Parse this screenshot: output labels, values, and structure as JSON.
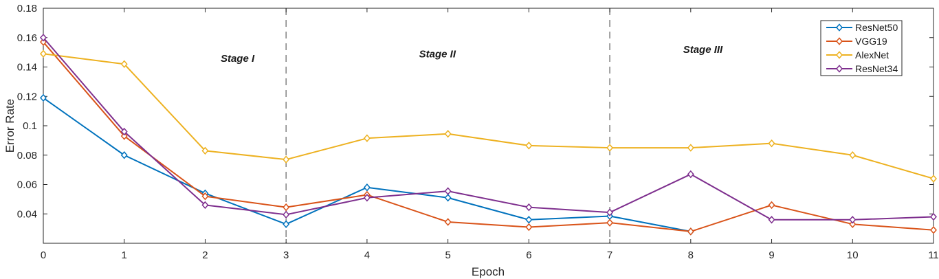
{
  "chart_data": {
    "type": "line",
    "xlabel": "Epoch",
    "ylabel": "Error Rate",
    "xlim": [
      0,
      11
    ],
    "ylim": [
      0.02,
      0.18
    ],
    "xticks": [
      0,
      1,
      2,
      3,
      4,
      5,
      6,
      7,
      8,
      9,
      10,
      11
    ],
    "xtick_labels": [
      "0",
      "1",
      "2",
      "3",
      "4",
      "5",
      "6",
      "7",
      "8",
      "9",
      "10",
      "11"
    ],
    "yticks": [
      0.04,
      0.06,
      0.08,
      0.1,
      0.12,
      0.14,
      0.16,
      0.18
    ],
    "ytick_labels": [
      "0.04",
      "0.06",
      "0.08",
      "0.1",
      "0.12",
      "0.14",
      "0.16",
      "0.18"
    ],
    "grid": false,
    "axis_color": "#262626",
    "x": [
      0,
      1,
      2,
      3,
      4,
      5,
      6,
      7,
      8,
      9,
      10,
      11
    ],
    "series": [
      {
        "name": "ResNet50",
        "color": "#0072BD",
        "marker": "diamond",
        "values": [
          0.119,
          0.08,
          0.054,
          0.033,
          0.058,
          0.051,
          0.036,
          0.0385,
          0.028,
          null,
          null,
          null
        ]
      },
      {
        "name": "VGG19",
        "color": "#D95319",
        "marker": "diamond",
        "values": [
          0.157,
          0.093,
          0.052,
          0.0445,
          0.053,
          0.0345,
          0.031,
          0.034,
          0.028,
          0.046,
          0.033,
          0.029
        ]
      },
      {
        "name": "AlexNet",
        "color": "#EDB120",
        "marker": "diamond",
        "values": [
          0.149,
          0.142,
          0.083,
          0.077,
          0.0915,
          0.0945,
          0.0865,
          0.085,
          0.085,
          0.088,
          0.08,
          0.064
        ]
      },
      {
        "name": "ResNet34",
        "color": "#7E2F8E",
        "marker": "diamond",
        "values": [
          0.16,
          0.096,
          0.046,
          0.0395,
          0.051,
          0.0555,
          0.0445,
          0.041,
          0.067,
          0.036,
          0.036,
          0.038
        ]
      }
    ],
    "legend": {
      "position": "top-right",
      "entries": [
        "ResNet50",
        "VGG19",
        "AlexNet",
        "ResNet34"
      ]
    },
    "annotations": {
      "stage_labels": [
        {
          "text": "Stage I",
          "x": 2.4,
          "y": 0.1435
        },
        {
          "text": "Stage II",
          "x": 4.87,
          "y": 0.1465
        },
        {
          "text": "Stage III",
          "x": 8.15,
          "y": 0.1495
        }
      ],
      "dividers": [
        {
          "x": 3
        },
        {
          "x": 7
        }
      ],
      "divider_color": "#7f7f7f"
    }
  }
}
